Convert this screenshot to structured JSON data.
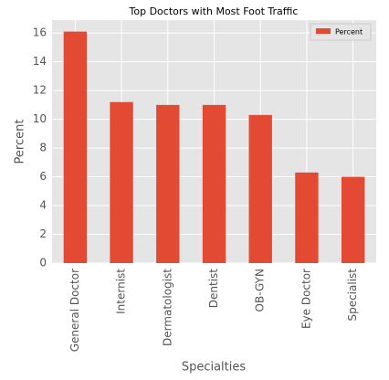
{
  "chart_data": {
    "type": "bar",
    "title": "Top Doctors with Most Foot Traffic",
    "x_label": "Specialties",
    "y_label": "Percent",
    "categories": [
      "General Doctor",
      "Internist",
      "Dermatologist",
      "Dentist",
      "OB-GYN",
      "Eye Doctor",
      "Specialist"
    ],
    "series": [
      {
        "name": "Percent",
        "color": "#e24a33",
        "values": [
          16.1,
          11.2,
          11.0,
          11.0,
          10.3,
          6.3,
          6.0
        ]
      }
    ],
    "ylim": [
      0,
      16.9
    ],
    "yticks": [
      0,
      2,
      4,
      6,
      8,
      10,
      12,
      14,
      16
    ],
    "grid": true,
    "legend": "upper right"
  }
}
